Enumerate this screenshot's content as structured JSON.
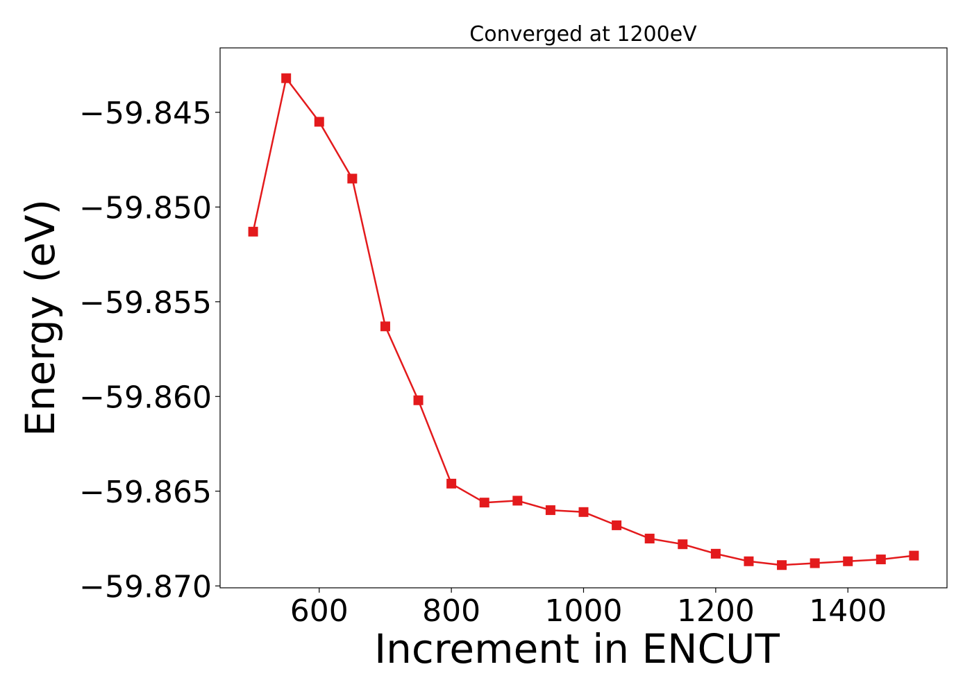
{
  "chart_data": {
    "type": "line",
    "title": "Converged at 1200eV",
    "xlabel": "Increment in ENCUT",
    "ylabel": "Energy (eV)",
    "xlim": [
      450,
      1550
    ],
    "ylim": [
      -59.8701,
      -59.8416
    ],
    "xticks": [
      600,
      800,
      1000,
      1200,
      1400
    ],
    "xtick_labels": [
      "600",
      "800",
      "1000",
      "1200",
      "1400"
    ],
    "yticks": [
      -59.845,
      -59.85,
      -59.855,
      -59.86,
      -59.865,
      -59.87
    ],
    "ytick_labels": [
      "−59.845",
      "−59.850",
      "−59.855",
      "−59.860",
      "−59.865",
      "−59.870"
    ],
    "grid": false,
    "series": [
      {
        "color": "#e31a1c",
        "marker": "square",
        "x": [
          500,
          550,
          600,
          650,
          700,
          750,
          800,
          850,
          900,
          950,
          1000,
          1050,
          1100,
          1150,
          1200,
          1250,
          1300,
          1350,
          1400,
          1450,
          1500
        ],
        "y": [
          -59.8513,
          -59.8432,
          -59.8455,
          -59.8485,
          -59.8563,
          -59.8602,
          -59.8646,
          -59.8656,
          -59.8655,
          -59.866,
          -59.8661,
          -59.8668,
          -59.8675,
          -59.8678,
          -59.8683,
          -59.8687,
          -59.8689,
          -59.8688,
          -59.8687,
          -59.8686,
          -59.8684
        ]
      }
    ]
  }
}
